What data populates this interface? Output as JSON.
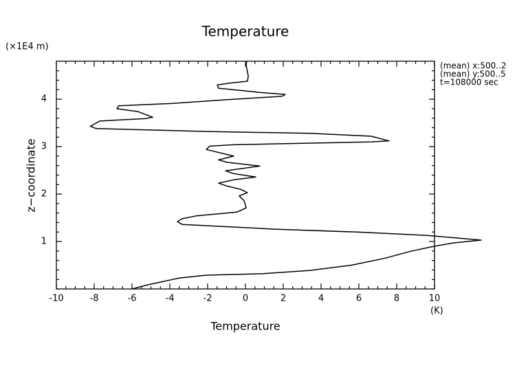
{
  "chart_data": {
    "type": "line",
    "title": "Temperature",
    "x_label": "Temperature",
    "x_unit": "(K)",
    "y_label": "z−coordinate",
    "y_unit": "(×1E4 m)",
    "annotations": [
      "(mean) x:500..2",
      "(mean) y:500..5",
      "t=108000 sec"
    ],
    "xlim": [
      -10,
      10
    ],
    "xticks": [
      -10,
      -8,
      -6,
      -4,
      -2,
      0,
      2,
      4,
      6,
      8,
      10
    ],
    "ylim": [
      0,
      4.8
    ],
    "yticks": [
      1,
      2,
      3,
      4
    ],
    "color": "#000000",
    "x": [
      -6.0,
      -5.16,
      -3.5,
      -2.07,
      0.84,
      3.4,
      5.6,
      7.4,
      8.8,
      10.0,
      11.0,
      12.47,
      9.56,
      5.9,
      1.56,
      -3.35,
      -3.6,
      -3.35,
      -2.6,
      -0.44,
      0.04,
      -0.07,
      -0.33,
      0.1,
      -0.25,
      -0.98,
      -1.42,
      -0.62,
      0.55,
      -0.62,
      -1.05,
      0.76,
      -0.98,
      -1.42,
      -0.62,
      -2.07,
      -1.89,
      -0.62,
      6.65,
      7.6,
      6.65,
      3.38,
      -2.07,
      -7.9,
      -8.2,
      -7.7,
      -5.3,
      -4.9,
      -5.7,
      -6.8,
      -6.7,
      -3.9,
      -0.98,
      1.93,
      2.1,
      0.84,
      -1.42,
      -1.49,
      -0.98,
      0.11,
      0.15,
      0.04,
      0.07
    ],
    "y": [
      0,
      0.087,
      0.23,
      0.29,
      0.32,
      0.39,
      0.5,
      0.65,
      0.8,
      0.9,
      0.97,
      1.03,
      1.13,
      1.2,
      1.26,
      1.36,
      1.42,
      1.48,
      1.54,
      1.62,
      1.71,
      1.86,
      1.96,
      2.03,
      2.1,
      2.17,
      2.23,
      2.3,
      2.36,
      2.43,
      2.49,
      2.59,
      2.67,
      2.72,
      2.8,
      2.94,
      3.01,
      3.04,
      3.1,
      3.12,
      3.22,
      3.28,
      3.32,
      3.38,
      3.43,
      3.54,
      3.59,
      3.62,
      3.74,
      3.8,
      3.86,
      3.91,
      3.99,
      4.06,
      4.1,
      4.14,
      4.23,
      4.3,
      4.33,
      4.38,
      4.49,
      4.71,
      4.8
    ]
  }
}
